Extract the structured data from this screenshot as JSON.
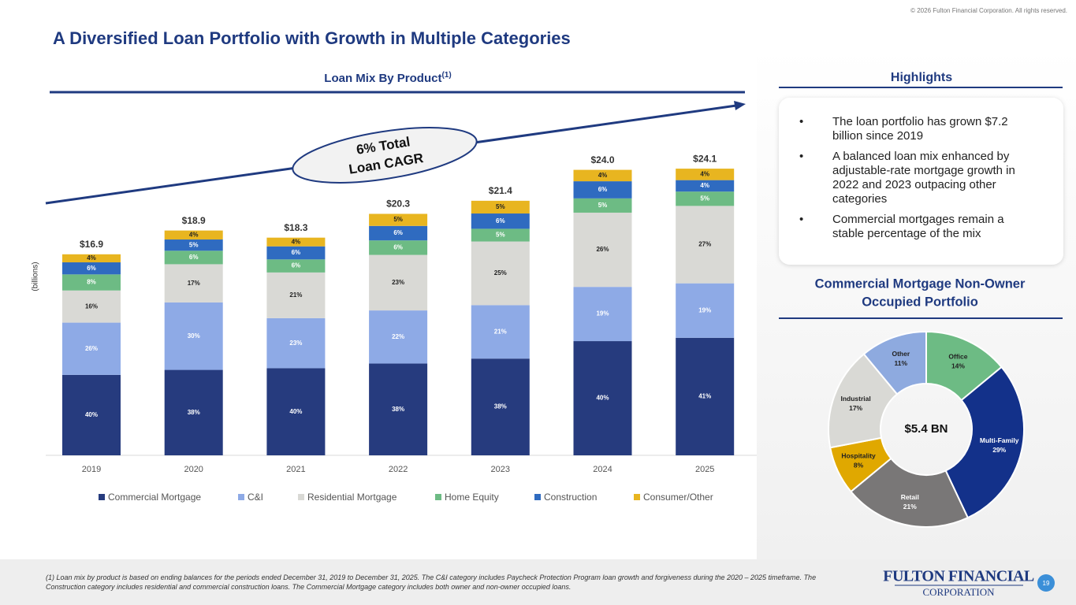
{
  "header": {
    "title": "A Diversified Loan Portfolio with Growth in Multiple Categories",
    "copyright": "© 2026 Fulton Financial Corporation.  All rights reserved."
  },
  "chart_data": [
    {
      "type": "stacked_bar",
      "title": "Loan Mix By Product",
      "title_note": "(1)",
      "y_label": "(billions)",
      "annotation": [
        "6% Total",
        "Loan CAGR"
      ],
      "categories": [
        "2019",
        "2020",
        "2021",
        "2022",
        "2023",
        "2024",
        "2025"
      ],
      "values": [
        16.9,
        18.9,
        18.3,
        20.3,
        21.4,
        24.0,
        24.1
      ],
      "value_labels": [
        "$16.9",
        "$18.9",
        "$18.3",
        "$20.3",
        "$21.4",
        "$24.0",
        "$24.1"
      ],
      "series": [
        {
          "name": "Commercial Mortgage",
          "color": "#263b7e",
          "values": [
            40,
            38,
            40,
            38,
            38,
            40,
            41
          ],
          "value_labels": [
            "40%",
            "38%",
            "40%",
            "38%",
            "38%",
            "40%",
            "41%"
          ]
        },
        {
          "name": "C&I",
          "color": "#8eaae6",
          "values": [
            26,
            30,
            23,
            22,
            21,
            19,
            19
          ],
          "value_labels": [
            "26%",
            "30%",
            "23%",
            "22%",
            "21%",
            "19%",
            "19%"
          ]
        },
        {
          "name": "Residential Mortgage",
          "color": "#d9d9d5",
          "values": [
            16,
            17,
            21,
            23,
            25,
            26,
            27
          ],
          "value_labels": [
            "16%",
            "17%",
            "21%",
            "23%",
            "25%",
            "26%",
            "27%"
          ]
        },
        {
          "name": "Home Equity",
          "color": "#6dbb84",
          "values": [
            8,
            6,
            6,
            6,
            5,
            5,
            5
          ],
          "value_labels": [
            "8%",
            "6%",
            "6%",
            "6%",
            "5%",
            "5%",
            "5%"
          ]
        },
        {
          "name": "Construction",
          "color": "#2f6bc0",
          "values": [
            6,
            5,
            6,
            6,
            6,
            6,
            4
          ],
          "value_labels": [
            "6%",
            "5%",
            "6%",
            "6%",
            "6%",
            "6%",
            "4%"
          ]
        },
        {
          "name": "Consumer/Other",
          "color": "#e8b520",
          "values": [
            4,
            4,
            4,
            5,
            5,
            4,
            4
          ],
          "value_labels": [
            "4%",
            "4%",
            "4%",
            "5%",
            "5%",
            "4%",
            "4%"
          ]
        }
      ]
    },
    {
      "type": "donut",
      "title": [
        "Commercial Mortgage Non-Owner",
        "Occupied Portfolio"
      ],
      "center_label": "$5.4 BN",
      "categories": [
        "Office",
        "Multi-Family",
        "Retail",
        "Hospitality",
        "Industrial",
        "Other"
      ],
      "values": [
        14,
        29,
        21,
        8,
        17,
        11
      ],
      "value_labels": [
        "14%",
        "29%",
        "21%",
        "8%",
        "17%",
        "11%"
      ],
      "colors": [
        "#6dbb84",
        "#13318a",
        "#797777",
        "#e0a800",
        "#d9d9d5",
        "#8eaadf"
      ]
    }
  ],
  "highlights": {
    "title": "Highlights",
    "bullets": [
      "The loan portfolio has grown $7.2 billion since 2019",
      "A balanced loan mix enhanced by adjustable-rate mortgage growth in 2022 and 2023 outpacing other categories",
      "Commercial mortgages remain a stable percentage of the mix"
    ]
  },
  "footnote": "(1) Loan mix by product is based on ending balances for the periods ended December 31, 2019 to December 31, 2025. The C&I category includes Paycheck Protection Program loan growth and forgiveness during the 2020 – 2025 timeframe. The Construction category includes residential and commercial construction loans. The Commercial Mortgage category includes both owner and non-owner occupied loans.",
  "logo": [
    "Fulton Financial",
    "Corporation"
  ],
  "page_number": "19"
}
